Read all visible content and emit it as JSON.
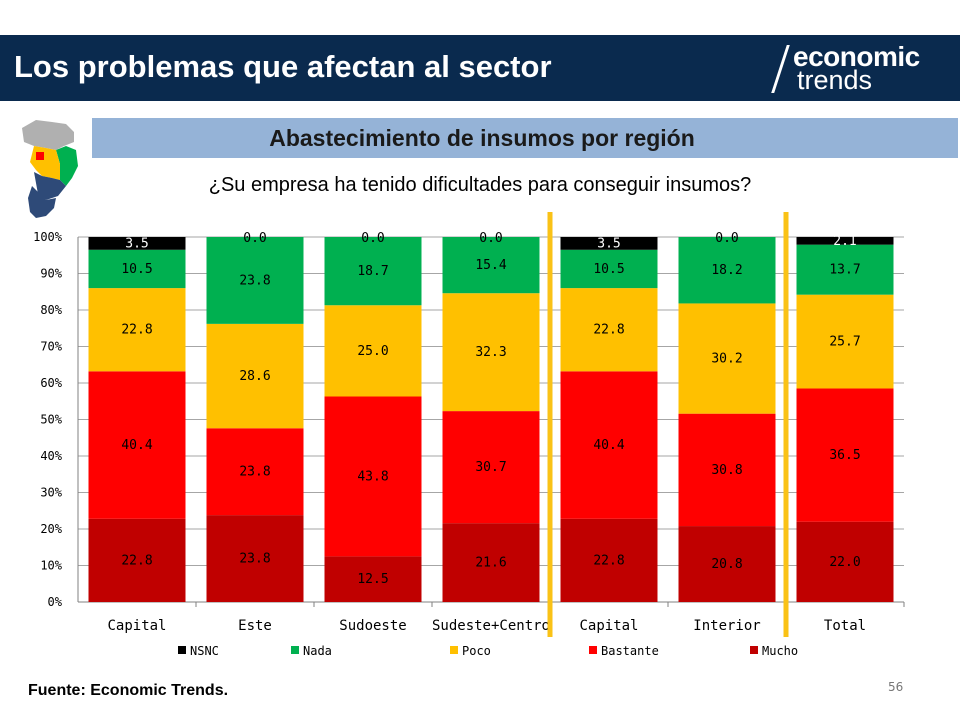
{
  "header": {
    "title": "Los problemas que afectan al sector"
  },
  "logo": {
    "line1": "economic",
    "line2": "trends"
  },
  "subheader": {
    "title": "Abastecimiento de insumos por región"
  },
  "question": "¿Su empresa ha tenido dificultades para conseguir insumos?",
  "footer": {
    "source": "Fuente: Economic Trends.",
    "page": "56"
  },
  "chart_data": {
    "type": "bar",
    "stacked": true,
    "percent": true,
    "categories": [
      "Capital",
      "Este",
      "Sudoeste",
      "Sudeste+Centro",
      "Capital",
      "Interior",
      "Total"
    ],
    "ylim": [
      0,
      100
    ],
    "yticks": [
      "0%",
      "10%",
      "20%",
      "30%",
      "40%",
      "50%",
      "60%",
      "70%",
      "80%",
      "90%",
      "100%"
    ],
    "grid": true,
    "legend_position": "bottom",
    "group_separators_after": [
      4,
      6
    ],
    "separator_color": "#fac216",
    "series": [
      {
        "name": "Mucho",
        "color": "#c00000",
        "values": [
          22.8,
          23.8,
          12.5,
          21.6,
          22.8,
          20.8,
          22.0
        ]
      },
      {
        "name": "Bastante",
        "color": "#ff0000",
        "values": [
          40.4,
          23.8,
          43.8,
          30.7,
          40.4,
          30.8,
          36.5
        ]
      },
      {
        "name": "Poco",
        "color": "#ffc000",
        "values": [
          22.8,
          28.6,
          25.0,
          32.3,
          22.8,
          30.2,
          25.7
        ]
      },
      {
        "name": "Nada",
        "color": "#00b050",
        "values": [
          10.5,
          23.8,
          18.7,
          15.4,
          10.5,
          18.2,
          13.7
        ]
      },
      {
        "name": "NSNC",
        "color": "#000000",
        "values": [
          3.5,
          0.0,
          0.0,
          0.0,
          3.5,
          0.0,
          2.1
        ]
      }
    ],
    "legend_order": [
      "NSNC",
      "Nada",
      "Poco",
      "Bastante",
      "Mucho"
    ]
  }
}
